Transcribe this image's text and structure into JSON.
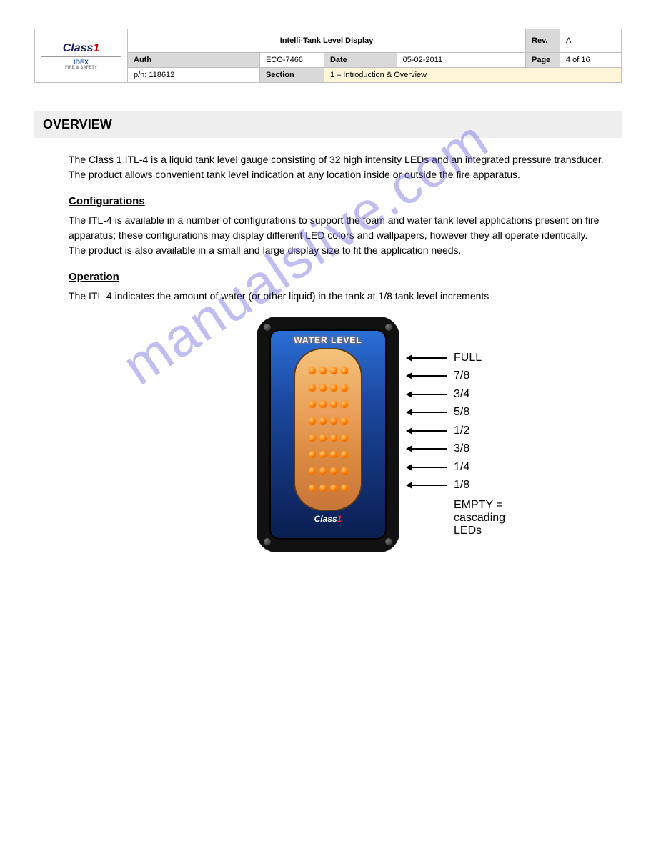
{
  "header": {
    "logo": {
      "brand": "Class",
      "brandDigit": "1",
      "sub": "IDEX",
      "subTag": "FIRE & SAFETY"
    },
    "title": "Intelli-Tank Level Display",
    "rev_label": "Rev.",
    "rev_value": "A",
    "auth_label": "Auth",
    "auth_value": "ECO-7466",
    "date_label": "Date",
    "date_value": "05-02-2011",
    "pn_label": "p/n: 118612",
    "page_label": "Page",
    "page_value": "4 of 16",
    "section_label": "Section",
    "section_value": "1 – Introduction & Overview"
  },
  "section_title": "OVERVIEW",
  "para1": "The Class 1 ITL-4 is a liquid tank level gauge consisting of 32 high intensity LEDs and an integrated pressure transducer. The product allows convenient tank level indication at any location inside or outside the fire apparatus.",
  "config_head": "Configurations",
  "para2": "The ITL-4 is available in a number of configurations to support the foam and water tank level applications present on fire apparatus; these configurations may display different LED colors and wallpapers, however they all operate identically. The product is also available in a small and large display size to fit the application needs.",
  "ops_head": "Operation",
  "para3": "The ITL-4 indicates the amount of water (or other liquid) in the tank at 1/8 tank level increments",
  "device": {
    "title": "WATER LEVEL",
    "brand": "Class",
    "brandDigit": "1",
    "led_rows": 8,
    "leds_per_row": 4,
    "led_color_center": "#ff7a00",
    "led_color_highlight": "#ffcf7a",
    "bg_gradient_top": "#2a6fd6",
    "bg_gradient_bottom": "#0a1e4f",
    "tank_color_top": "#f4c27a",
    "tank_color_bottom": "#c8753a",
    "case_color": "#111111"
  },
  "levels": [
    "FULL",
    "7/8",
    "3/4",
    "5/8",
    "1/2",
    "3/8",
    "1/4",
    "1/8"
  ],
  "empty_text": "EMPTY = cascading LEDs",
  "watermark": "manualslive.com"
}
